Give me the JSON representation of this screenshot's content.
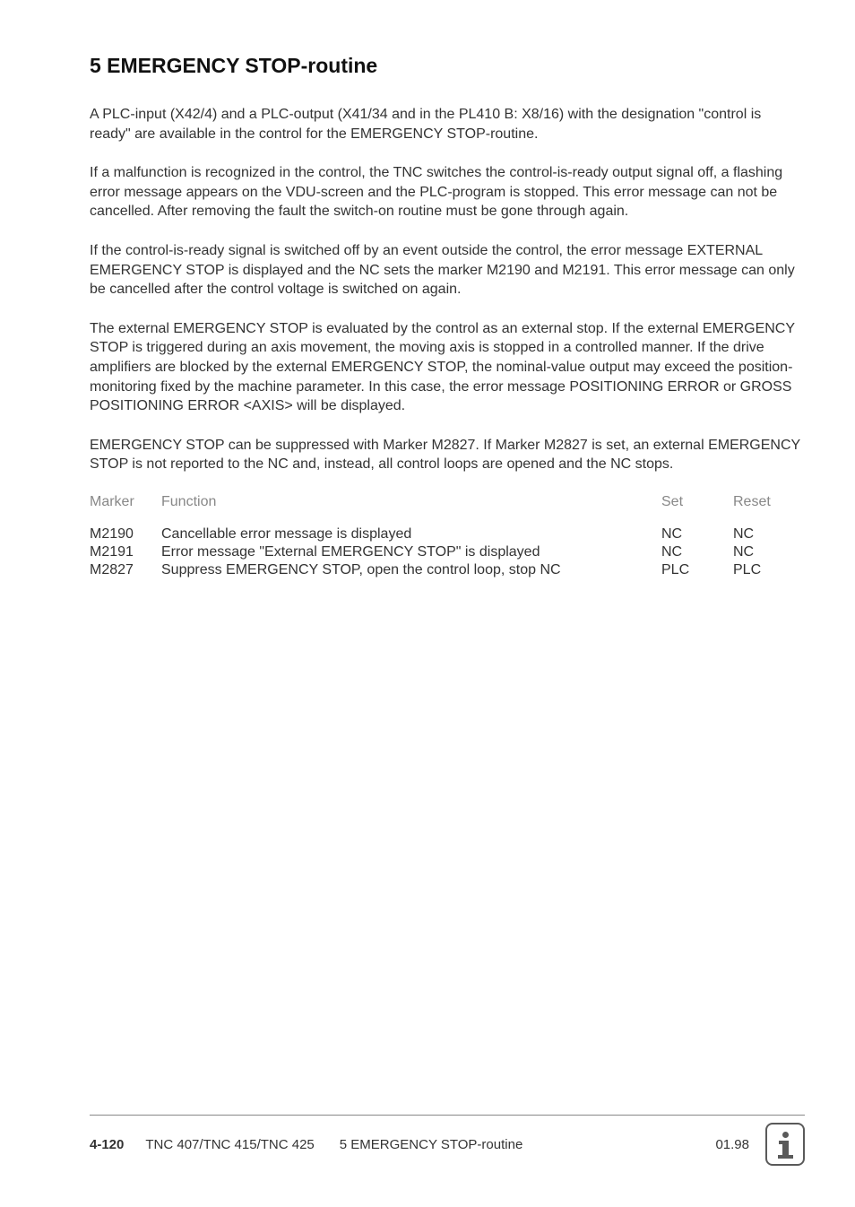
{
  "heading": "5  EMERGENCY STOP-routine",
  "paragraphs": {
    "p1": "A PLC-input (X42/4) and a PLC-output (X41/34 and in the PL410 B: X8/16) with the designation \"control is ready\" are available in the control for the EMERGENCY STOP-routine.",
    "p2": "If a malfunction is recognized in the control, the TNC switches the control-is-ready output signal off, a flashing error message appears on the VDU-screen and the PLC-program is stopped. This error message can not be cancelled. After removing the fault the switch-on routine must be gone through again.",
    "p3": "If the control-is-ready signal is switched off by an event outside the control,  the error message EXTERNAL EMERGENCY STOP is displayed and the NC sets the marker M2190 and M2191. This error message can only be cancelled after the control voltage is switched on again.",
    "p4": "The external EMERGENCY STOP is evaluated by the control as an external stop. If the external EMERGENCY STOP is triggered during an axis movement, the moving axis is stopped in a controlled manner. If the drive amplifiers are blocked by the external EMERGENCY STOP, the nominal-value output may exceed the position-monitoring fixed by the machine parameter. In this case, the error message POSITIONING ERROR or GROSS POSITIONING ERROR <AXIS> will be displayed.",
    "p5": "EMERGENCY STOP can be suppressed with Marker M2827. If Marker M2827 is set, an external EMERGENCY STOP is not reported to the NC and, instead, all control loops are opened and the NC stops."
  },
  "table": {
    "headers": {
      "marker": "Marker",
      "function": "Function",
      "set": "Set",
      "reset": "Reset"
    },
    "rows": [
      {
        "marker": "M2190",
        "function": "Cancellable error message is displayed",
        "set": "NC",
        "reset": "NC"
      },
      {
        "marker": "M2191",
        "function": "Error message \"External EMERGENCY STOP\" is displayed",
        "set": "NC",
        "reset": "NC"
      },
      {
        "marker": "M2827",
        "function": "Suppress EMERGENCY STOP, open the control loop, stop NC",
        "set": "PLC",
        "reset": "PLC"
      }
    ]
  },
  "footer": {
    "page": "4-120",
    "model": "TNC 407/TNC 415/TNC 425",
    "section": "5  EMERGENCY STOP-routine",
    "date": "01.98"
  }
}
